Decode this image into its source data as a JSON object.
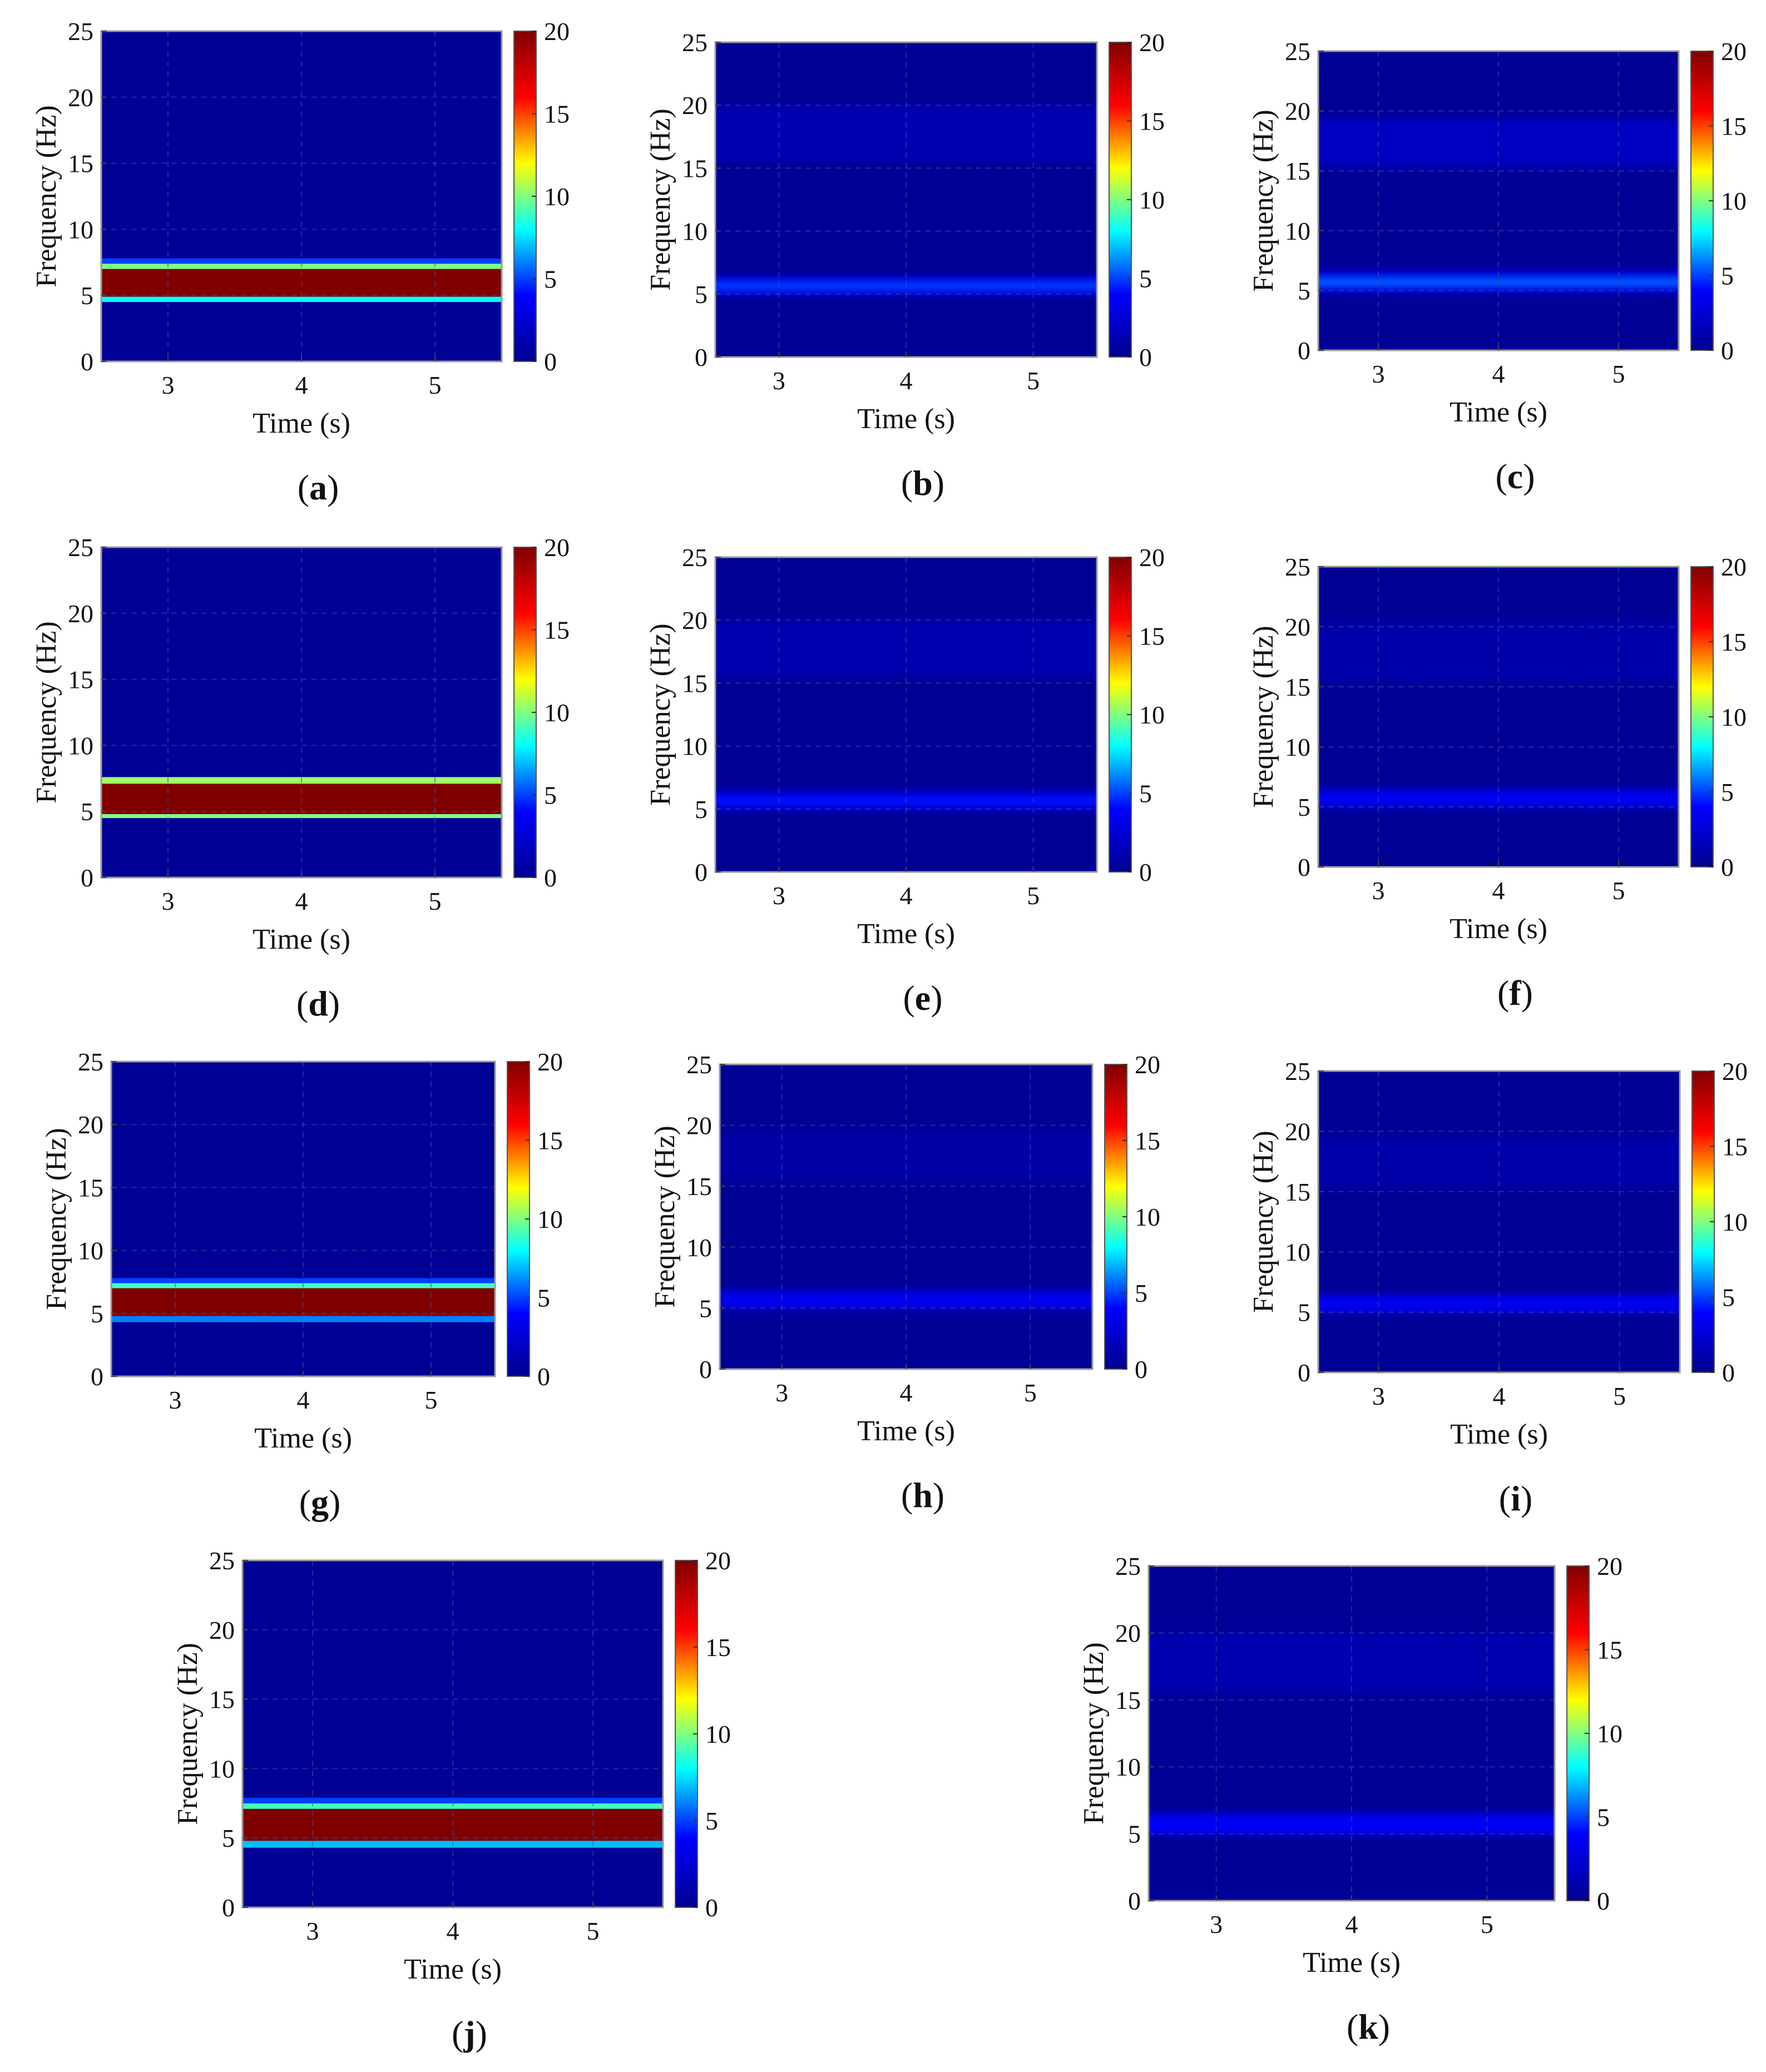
{
  "figure": {
    "layout": "4x3 grid of spectrogram panels (last row has two panels)"
  },
  "colorscale": {
    "name": "jet",
    "stops": [
      "#00008f",
      "#0000ff",
      "#00ffff",
      "#ffff00",
      "#ff0000",
      "#800000"
    ]
  },
  "chart_data": [
    {
      "id": "a",
      "type": "heatmap",
      "caption": "(a)",
      "caption_letter": "a",
      "xlabel": "Time (s)",
      "ylabel": "Frequency (Hz)",
      "xlim": [
        2.5,
        5.5
      ],
      "ylim": [
        0,
        25
      ],
      "xticks": [
        3,
        4,
        5
      ],
      "yticks": [
        0,
        5,
        10,
        15,
        20,
        25
      ],
      "colorbar": {
        "range": [
          0,
          20
        ],
        "ticks": [
          0,
          5,
          10,
          15,
          20
        ]
      },
      "background_value": 0.2,
      "bands": [
        {
          "f_low": 4.5,
          "f_high": 4.9,
          "value": 8
        },
        {
          "f_low": 4.9,
          "f_high": 7.0,
          "value": 20
        },
        {
          "f_low": 7.0,
          "f_high": 7.4,
          "value": 10
        },
        {
          "f_low": 7.4,
          "f_high": 7.8,
          "value": 5
        }
      ]
    },
    {
      "id": "b",
      "type": "heatmap",
      "caption": "(b)",
      "caption_letter": "b",
      "xlabel": "Time (s)",
      "ylabel": "Frequency (Hz)",
      "xlim": [
        2.5,
        5.5
      ],
      "ylim": [
        0,
        25
      ],
      "xticks": [
        3,
        4,
        5
      ],
      "yticks": [
        0,
        5,
        10,
        15,
        20,
        25
      ],
      "colorbar": {
        "range": [
          0,
          20
        ],
        "ticks": [
          0,
          5,
          10,
          15,
          20
        ]
      },
      "background_value": 0.2,
      "bands": [
        {
          "f_low": 15.5,
          "f_high": 20.0,
          "value": 1.2
        },
        {
          "f_low": 4.9,
          "f_high": 6.4,
          "value": 3.0
        },
        {
          "f_low": 5.3,
          "f_high": 6.0,
          "value": 5.0
        }
      ]
    },
    {
      "id": "c",
      "type": "heatmap",
      "caption": "(c)",
      "caption_letter": "c",
      "xlabel": "Time (s)",
      "ylabel": "Frequency (Hz)",
      "xlim": [
        2.5,
        5.5
      ],
      "ylim": [
        0,
        25
      ],
      "xticks": [
        3,
        4,
        5
      ],
      "yticks": [
        0,
        5,
        10,
        15,
        20,
        25
      ],
      "colorbar": {
        "range": [
          0,
          20
        ],
        "ticks": [
          0,
          5,
          10,
          15,
          20
        ]
      },
      "background_value": 0.2,
      "bands": [
        {
          "f_low": 15.3,
          "f_high": 19.4,
          "value": 1.8
        },
        {
          "f_low": 4.8,
          "f_high": 6.6,
          "value": 3.2
        },
        {
          "f_low": 5.3,
          "f_high": 6.1,
          "value": 5.5
        }
      ]
    },
    {
      "id": "d",
      "type": "heatmap",
      "caption": "(d)",
      "caption_letter": "d",
      "xlabel": "Time (s)",
      "ylabel": "Frequency (Hz)",
      "xlim": [
        2.5,
        5.5
      ],
      "ylim": [
        0,
        25
      ],
      "xticks": [
        3,
        4,
        5
      ],
      "yticks": [
        0,
        5,
        10,
        15,
        20,
        25
      ],
      "colorbar": {
        "range": [
          0,
          20
        ],
        "ticks": [
          0,
          5,
          10,
          15,
          20
        ]
      },
      "background_value": 0.2,
      "bands": [
        {
          "f_low": 4.5,
          "f_high": 4.8,
          "value": 10
        },
        {
          "f_low": 4.8,
          "f_high": 7.1,
          "value": 20
        },
        {
          "f_low": 7.1,
          "f_high": 7.6,
          "value": 10.5
        }
      ]
    },
    {
      "id": "e",
      "type": "heatmap",
      "caption": "(e)",
      "caption_letter": "e",
      "xlabel": "Time (s)",
      "ylabel": "Frequency (Hz)",
      "xlim": [
        2.5,
        5.5
      ],
      "ylim": [
        0,
        25
      ],
      "xticks": [
        3,
        4,
        5
      ],
      "yticks": [
        0,
        5,
        10,
        15,
        20,
        25
      ],
      "colorbar": {
        "range": [
          0,
          20
        ],
        "ticks": [
          0,
          5,
          10,
          15,
          20
        ]
      },
      "background_value": 0.2,
      "bands": [
        {
          "f_low": 15.5,
          "f_high": 20.0,
          "value": 1.1
        },
        {
          "f_low": 4.9,
          "f_high": 6.4,
          "value": 2.8
        },
        {
          "f_low": 5.3,
          "f_high": 6.0,
          "value": 4.2
        }
      ]
    },
    {
      "id": "f",
      "type": "heatmap",
      "caption": "(f)",
      "caption_letter": "f",
      "xlabel": "Time (s)",
      "ylabel": "Frequency (Hz)",
      "xlim": [
        2.5,
        5.5
      ],
      "ylim": [
        0,
        25
      ],
      "xticks": [
        3,
        4,
        5
      ],
      "yticks": [
        0,
        5,
        10,
        15,
        20,
        25
      ],
      "colorbar": {
        "range": [
          0,
          20
        ],
        "ticks": [
          0,
          5,
          10,
          15,
          20
        ]
      },
      "background_value": 0.2,
      "bands": [
        {
          "f_low": 15.5,
          "f_high": 20.5,
          "value": 1.0
        },
        {
          "f_low": 4.9,
          "f_high": 6.5,
          "value": 2.6
        },
        {
          "f_low": 5.3,
          "f_high": 6.1,
          "value": 3.8
        }
      ]
    },
    {
      "id": "g",
      "type": "heatmap",
      "caption": "(g)",
      "caption_letter": "g",
      "xlabel": "Time (s)",
      "ylabel": "Frequency (Hz)",
      "xlim": [
        2.5,
        5.5
      ],
      "ylim": [
        0,
        25
      ],
      "xticks": [
        3,
        4,
        5
      ],
      "yticks": [
        0,
        5,
        10,
        15,
        20,
        25
      ],
      "colorbar": {
        "range": [
          0,
          20
        ],
        "ticks": [
          0,
          5,
          10,
          15,
          20
        ]
      },
      "background_value": 0.2,
      "bands": [
        {
          "f_low": 4.3,
          "f_high": 4.8,
          "value": 6
        },
        {
          "f_low": 4.8,
          "f_high": 7.0,
          "value": 20
        },
        {
          "f_low": 7.0,
          "f_high": 7.4,
          "value": 9
        },
        {
          "f_low": 7.4,
          "f_high": 7.8,
          "value": 5
        }
      ]
    },
    {
      "id": "h",
      "type": "heatmap",
      "caption": "(h)",
      "caption_letter": "h",
      "xlabel": "Time (s)",
      "ylabel": "Frequency (Hz)",
      "xlim": [
        2.5,
        5.5
      ],
      "ylim": [
        0,
        25
      ],
      "xticks": [
        3,
        4,
        5
      ],
      "yticks": [
        0,
        5,
        10,
        15,
        20,
        25
      ],
      "colorbar": {
        "range": [
          0,
          20
        ],
        "ticks": [
          0,
          5,
          10,
          15,
          20
        ]
      },
      "background_value": 0.2,
      "bands": [
        {
          "f_low": 15.5,
          "f_high": 19.5,
          "value": 0.9
        },
        {
          "f_low": 4.9,
          "f_high": 6.5,
          "value": 2.6
        },
        {
          "f_low": 5.3,
          "f_high": 6.1,
          "value": 3.6
        }
      ]
    },
    {
      "id": "i",
      "type": "heatmap",
      "caption": "(i)",
      "caption_letter": "i",
      "xlabel": "Time (s)",
      "ylabel": "Frequency (Hz)",
      "xlim": [
        2.5,
        5.5
      ],
      "ylim": [
        0,
        25
      ],
      "xticks": [
        3,
        4,
        5
      ],
      "yticks": [
        0,
        5,
        10,
        15,
        20,
        25
      ],
      "colorbar": {
        "range": [
          0,
          20
        ],
        "ticks": [
          0,
          5,
          10,
          15,
          20
        ]
      },
      "background_value": 0.2,
      "bands": [
        {
          "f_low": 15.5,
          "f_high": 19.5,
          "value": 1.0
        },
        {
          "f_low": 4.9,
          "f_high": 6.5,
          "value": 2.6
        },
        {
          "f_low": 5.3,
          "f_high": 6.1,
          "value": 3.6
        }
      ]
    },
    {
      "id": "j",
      "type": "heatmap",
      "caption": "(j)",
      "caption_letter": "j",
      "xlabel": "Time (s)",
      "ylabel": "Frequency (Hz)",
      "xlim": [
        2.5,
        5.5
      ],
      "ylim": [
        0,
        25
      ],
      "xticks": [
        3,
        4,
        5
      ],
      "yticks": [
        0,
        5,
        10,
        15,
        20,
        25
      ],
      "colorbar": {
        "range": [
          0,
          20
        ],
        "ticks": [
          0,
          5,
          10,
          15,
          20
        ]
      },
      "background_value": 0.2,
      "bands": [
        {
          "f_low": 4.3,
          "f_high": 4.8,
          "value": 7
        },
        {
          "f_low": 4.8,
          "f_high": 7.1,
          "value": 20
        },
        {
          "f_low": 7.1,
          "f_high": 7.5,
          "value": 9
        },
        {
          "f_low": 7.5,
          "f_high": 7.9,
          "value": 5
        }
      ]
    },
    {
      "id": "k",
      "type": "heatmap",
      "caption": "(k)",
      "caption_letter": "k",
      "xlabel": "Time (s)",
      "ylabel": "Frequency (Hz)",
      "xlim": [
        2.5,
        5.5
      ],
      "ylim": [
        0,
        25
      ],
      "xticks": [
        3,
        4,
        5
      ],
      "yticks": [
        0,
        5,
        10,
        15,
        20,
        25
      ],
      "colorbar": {
        "range": [
          0,
          20
        ],
        "ticks": [
          0,
          5,
          10,
          15,
          20
        ]
      },
      "background_value": 0.2,
      "bands": [
        {
          "f_low": 15.5,
          "f_high": 20.0,
          "value": 1.1
        },
        {
          "f_low": 4.9,
          "f_high": 6.6,
          "value": 2.8
        },
        {
          "f_low": 5.3,
          "f_high": 6.1,
          "value": 4.0
        }
      ]
    }
  ]
}
